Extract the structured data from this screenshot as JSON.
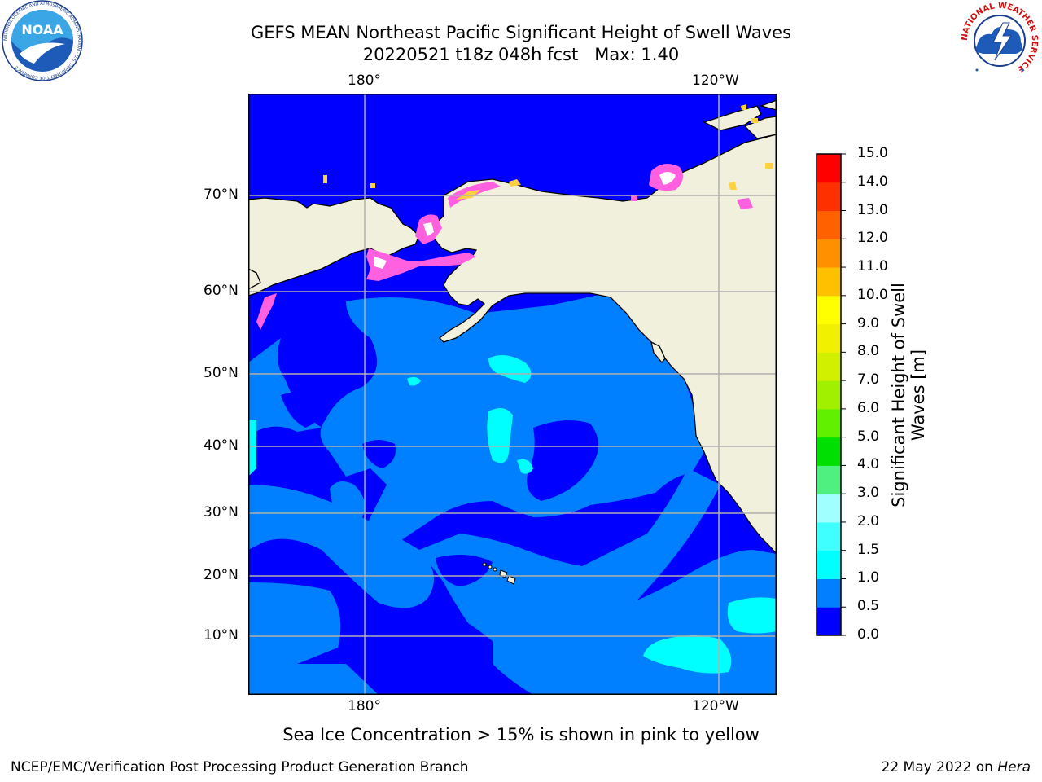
{
  "title_line1": "GEFS MEAN Northeast Pacific Significant Height of Swell Waves",
  "title_line2_date": "20220521 t18z 048h fcst",
  "title_line2_max": "Max: 1.40",
  "lon_ticks": [
    "180°",
    "120°W"
  ],
  "lat_ticks": [
    "70°N",
    "60°N",
    "50°N",
    "40°N",
    "30°N",
    "20°N",
    "10°N"
  ],
  "colorbar": {
    "label": "Significant Height of Swell Waves [m]",
    "levels": [
      "0.0",
      "0.5",
      "1.0",
      "1.5",
      "2.0",
      "3.0",
      "4.0",
      "5.0",
      "6.0",
      "7.0",
      "8.0",
      "9.0",
      "10.0",
      "11.0",
      "12.0",
      "13.0",
      "14.0",
      "15.0"
    ],
    "colors": [
      "#0000ff",
      "#0080ff",
      "#00ffff",
      "#40ffff",
      "#a0ffff",
      "#50f080",
      "#00e000",
      "#60f000",
      "#a0f000",
      "#d0f000",
      "#f0f000",
      "#ffff00",
      "#ffc000",
      "#ff9000",
      "#ff6000",
      "#ff3000",
      "#ff0000"
    ]
  },
  "colors": {
    "land": "#f0f0dc",
    "grid": "#b0b0b0",
    "ice_pink": "#ff60e0",
    "ice_yellow": "#ffd040"
  },
  "caption": "Sea Ice Concentration > 15% is shown in pink to yellow",
  "footer_left": "NCEP/EMC/Verification Post Processing Product Generation Branch",
  "footer_right_prefix": "22 May 2022 on ",
  "footer_right_host": "Hera",
  "noaa_logo_text": "NOAA",
  "noaa_ring_text": "NATIONAL OCEANIC AND ATMOSPHERIC ADMINISTRATION · U.S. DEPARTMENT OF COMMERCE",
  "nws_ring_text": "NATIONAL WEATHER SERVICE"
}
